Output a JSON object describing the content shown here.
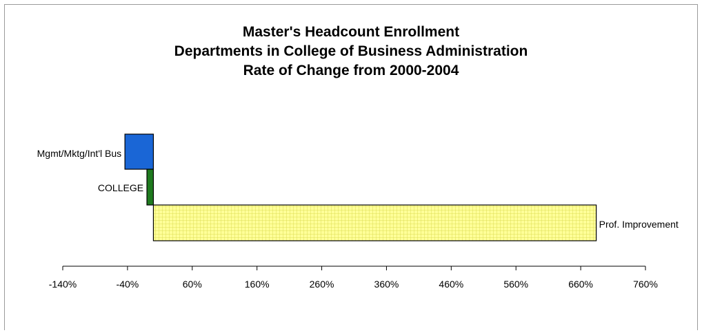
{
  "chart_data": {
    "type": "bar",
    "orientation": "horizontal",
    "title_lines": [
      "Master's Headcount Enrollment",
      "Departments in College of Business Administration",
      "Rate of Change from 2000-2004"
    ],
    "xlabel": "",
    "ylabel": "",
    "xlim": [
      -140,
      760
    ],
    "tick_values": [
      -140,
      -40,
      60,
      160,
      260,
      360,
      460,
      560,
      660,
      760
    ],
    "tick_labels": [
      "-140%",
      "-40%",
      "60%",
      "160%",
      "260%",
      "360%",
      "460%",
      "560%",
      "660%",
      "760%"
    ],
    "grid": false,
    "legend": "none",
    "bars": [
      {
        "category": "Mgmt/Mktg/Int'l Bus",
        "value": -44,
        "color": "#1a66d6",
        "pattern": "solid"
      },
      {
        "category": "COLLEGE",
        "value": -10,
        "color": "#1f7a1f",
        "pattern": "solid"
      },
      {
        "category": "Prof. Improvement",
        "value": 684,
        "color": "#ffff99",
        "pattern": "grid"
      }
    ]
  }
}
